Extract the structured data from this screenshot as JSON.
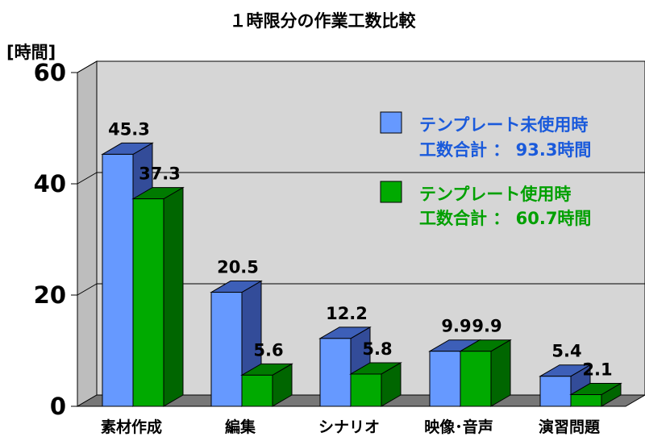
{
  "chart_data": {
    "type": "bar",
    "title": "１時限分の作業工数比較",
    "ylabel": "[時間]",
    "ylim": [
      0,
      60
    ],
    "yticks": [
      "0",
      "20",
      "40",
      "60"
    ],
    "grid": true,
    "categories": [
      "素材作成",
      "編集",
      "シナリオ",
      "映像･音声",
      "演習問題"
    ],
    "series": [
      {
        "name": "テンプレート未使用時",
        "total_label": "工数合計 ： 93.3時間",
        "color": "#6699ff",
        "values": [
          45.3,
          20.5,
          12.2,
          9.9,
          5.4
        ],
        "value_labels": [
          "45.3",
          "20.5",
          "12.2",
          "9.9",
          "5.4"
        ]
      },
      {
        "name": "テンプレート使用時",
        "total_label": "工数合計 ： 60.7時間",
        "color": "#00aa00",
        "values": [
          37.3,
          5.6,
          5.8,
          9.9,
          2.1
        ],
        "value_labels": [
          "37.3",
          "5.6",
          "5.8",
          "9.9",
          "2.1"
        ]
      }
    ],
    "legend_position": "top-right"
  }
}
